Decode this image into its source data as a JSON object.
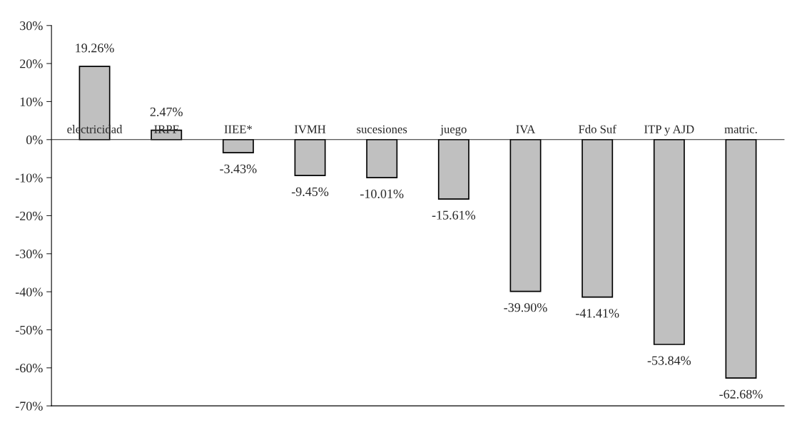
{
  "chart_data": {
    "type": "bar",
    "categories": [
      "electricidad",
      "IRPF",
      "IIEE*",
      "IVMH",
      "sucesiones",
      "juego",
      "IVA",
      "Fdo Suf",
      "ITP y AJD",
      "matric."
    ],
    "values": [
      19.26,
      2.47,
      -3.43,
      -9.45,
      -10.01,
      -15.61,
      -39.9,
      -41.41,
      -53.84,
      -62.68
    ],
    "value_labels": [
      "19.26%",
      "2.47%",
      "-3.43%",
      "-9.45%",
      "-10.01%",
      "-15.61%",
      "-39.90%",
      "-41.41%",
      "-53.84%",
      "-62.68%"
    ],
    "color": "#c0c0c0",
    "ylim": [
      -70,
      30
    ],
    "yticks": [
      {
        "value": -70,
        "label": "-70%"
      },
      {
        "value": -60,
        "label": "-60%"
      },
      {
        "value": -50,
        "label": "-50%"
      },
      {
        "value": -40,
        "label": "-40%"
      },
      {
        "value": -30,
        "label": "-30%"
      },
      {
        "value": -20,
        "label": "-20%"
      },
      {
        "value": -10,
        "label": "-10%"
      },
      {
        "value": 0,
        "label": "0%"
      },
      {
        "value": 10,
        "label": "10%"
      },
      {
        "value": 20,
        "label": "20%"
      },
      {
        "value": 30,
        "label": "30%"
      }
    ],
    "grid": false,
    "legend": false
  }
}
